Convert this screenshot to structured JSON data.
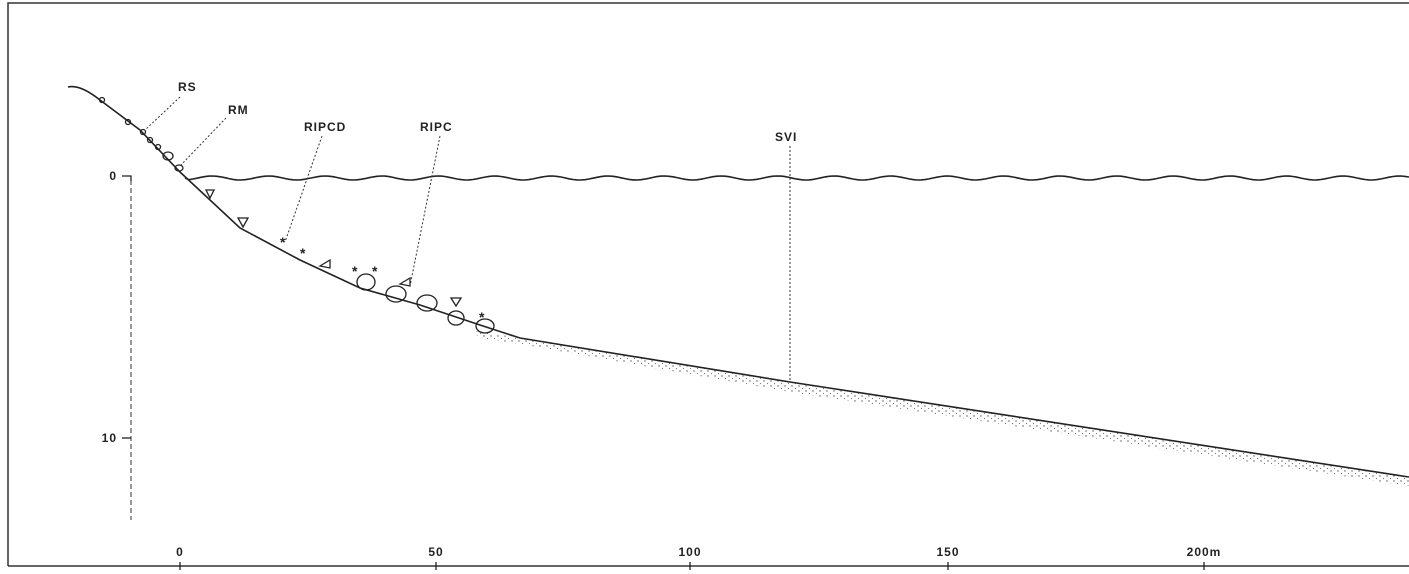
{
  "labels": {
    "rs": "RS",
    "rm": "RM",
    "ripcd": "RIPCD",
    "ripc": "RIPC",
    "svi": "SVI"
  },
  "depth_axis": {
    "ticks": [
      "0",
      "10"
    ]
  },
  "distance_axis": {
    "ticks": [
      "0",
      "50",
      "100",
      "150",
      "200m"
    ]
  }
}
